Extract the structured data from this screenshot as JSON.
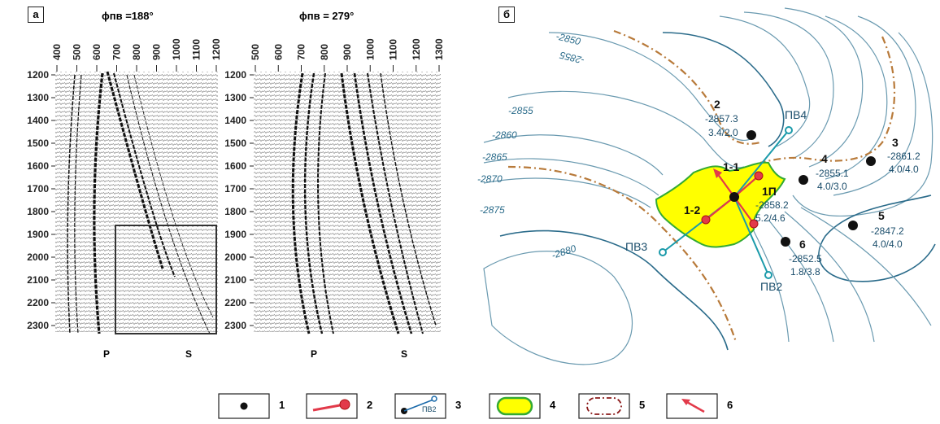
{
  "panel_a": {
    "label": "а",
    "left": {
      "title": "ϕпв =188°",
      "x_ticks": [
        "400",
        "500",
        "600",
        "700",
        "800",
        "900",
        "1000",
        "1100",
        "1200"
      ],
      "wave_labels": [
        "P",
        "S"
      ]
    },
    "right": {
      "title": "ϕпв = 279°",
      "x_ticks": [
        "500",
        "600",
        "700",
        "800",
        "900",
        "1000",
        "1100",
        "1200",
        "1300"
      ],
      "wave_labels": [
        "P",
        "S"
      ]
    },
    "y_ticks": [
      "1200",
      "1300",
      "1400",
      "1500",
      "1600",
      "1700",
      "1800",
      "1900",
      "2000",
      "2100",
      "2200",
      "2300"
    ]
  },
  "panel_b": {
    "label": "б",
    "contour_labels": [
      "-2850",
      "-2855",
      "-2855",
      "-2860",
      "-2865",
      "-2870",
      "-2875",
      "-2880"
    ],
    "wells": [
      {
        "num": "2",
        "depth": "-2857.3",
        "ratio": "3.4/2.0"
      },
      {
        "num": "3",
        "depth": "-2861.2",
        "ratio": "4.0/4.0"
      },
      {
        "num": "4",
        "depth": "-2855.1",
        "ratio": "4.0/3.0"
      },
      {
        "num": "5",
        "depth": "-2847.2",
        "ratio": "4.0/4.0"
      },
      {
        "num": "6",
        "depth": "-2852.5",
        "ratio": "1.8/3.8"
      },
      {
        "num": "1П",
        "depth": "-2858.2",
        "ratio": "5.2/4.6"
      }
    ],
    "sources": [
      "ПВ4",
      "ПВ3",
      "ПВ2"
    ],
    "points": [
      "1-1",
      "1-2"
    ]
  },
  "legend": {
    "items": [
      {
        "num": "1"
      },
      {
        "num": "2"
      },
      {
        "num": "3",
        "sublabel": "ПВ2"
      },
      {
        "num": "4"
      },
      {
        "num": "5"
      },
      {
        "num": "6"
      }
    ]
  },
  "colors": {
    "contour": "#2a6b8a",
    "fault": "#b87a3a",
    "zone_fill": "#ffff00",
    "zone_edge": "#33aa33",
    "profile": "#1a9aaa",
    "arrow": "#e23a4a"
  }
}
